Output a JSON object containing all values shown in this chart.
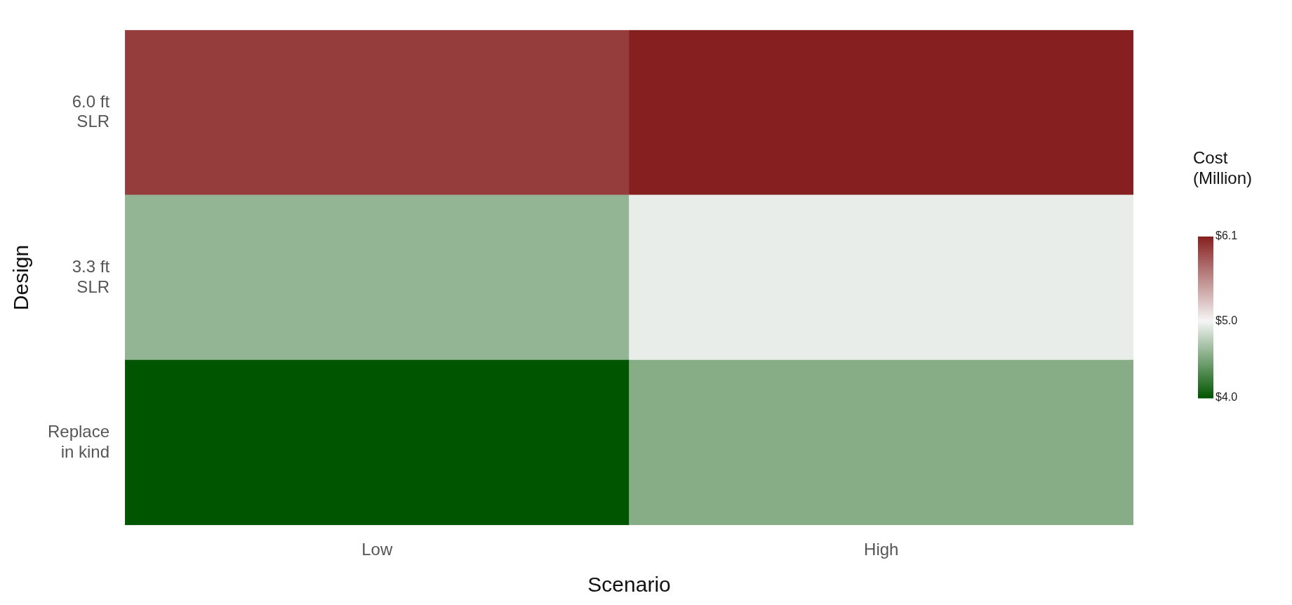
{
  "chart_data": {
    "type": "heatmap",
    "xlabel": "Scenario",
    "ylabel": "Design",
    "clabel": "Cost\n(Million)",
    "categories": [
      "Low",
      "High"
    ],
    "y_categories": [
      "6.0 ft SLR",
      "3.3 ft SLR",
      "Replace in kind"
    ],
    "cells": [
      [
        5.95,
        6.1
      ],
      [
        4.6,
        4.95
      ],
      [
        4.0,
        4.55
      ]
    ],
    "clim": [
      4.0,
      6.1
    ],
    "cticks": [
      {
        "value": 4.0,
        "label": "$4.0"
      },
      {
        "value": 5.0,
        "label": "$5.0"
      },
      {
        "value": 6.1,
        "label": "$6.1"
      }
    ]
  }
}
